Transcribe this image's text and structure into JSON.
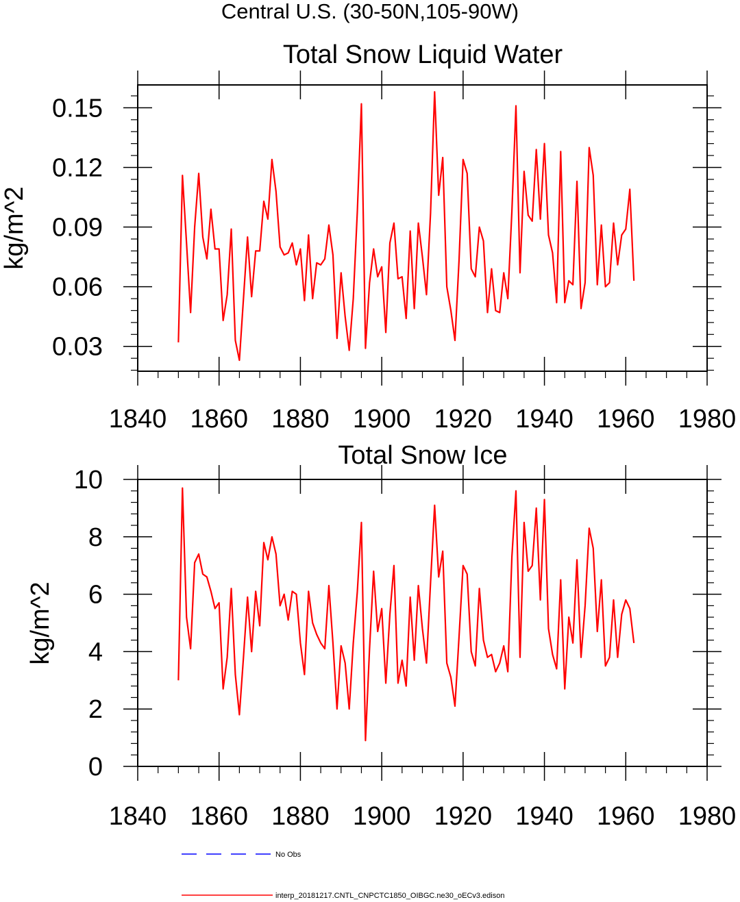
{
  "suptitle": "Central U.S. (30-50N,105-90W)",
  "colors": {
    "model": "#ff0000",
    "obs": "#0000ff",
    "axis": "#000000"
  },
  "legend": {
    "position": "bottom-left",
    "entries": [
      {
        "label": "No Obs",
        "color": "#0000ff",
        "style": "dashed"
      },
      {
        "label": "interp_20181217.CNTL_CNPCTC1850_OIBGC.ne30_oECv3.edison",
        "color": "#ff0000",
        "style": "solid"
      }
    ]
  },
  "chart_data": [
    {
      "type": "line",
      "title": "Total Snow Liquid Water",
      "xlabel": "",
      "ylabel": "kg/m^2",
      "xlim": [
        1840,
        1980
      ],
      "ylim": [
        0.0175,
        0.1615
      ],
      "x_ticks": [
        1840,
        1860,
        1880,
        1900,
        1920,
        1940,
        1960,
        1980
      ],
      "x_tick_labels": [
        "1840",
        "1860",
        "1880",
        "1900",
        "1920",
        "1940",
        "1960",
        "1980"
      ],
      "y_ticks": [
        0.03,
        0.06,
        0.09,
        0.12,
        0.15
      ],
      "y_tick_labels": [
        "0.03",
        "0.06",
        "0.09",
        "0.12",
        "0.15"
      ],
      "series": [
        {
          "name": "interp_20181217.CNTL_CNPCTC1850_OIBGC.ne30_oECv3.edison",
          "x_start": 1850,
          "x_step": 1,
          "values": [
            0.032,
            0.116,
            0.082,
            0.047,
            0.09,
            0.117,
            0.085,
            0.074,
            0.099,
            0.079,
            0.079,
            0.043,
            0.056,
            0.089,
            0.033,
            0.023,
            0.054,
            0.085,
            0.055,
            0.078,
            0.078,
            0.103,
            0.094,
            0.124,
            0.108,
            0.08,
            0.076,
            0.077,
            0.082,
            0.071,
            0.079,
            0.053,
            0.086,
            0.054,
            0.072,
            0.071,
            0.074,
            0.091,
            0.076,
            0.034,
            0.067,
            0.045,
            0.028,
            0.054,
            0.098,
            0.152,
            0.029,
            0.062,
            0.079,
            0.065,
            0.07,
            0.037,
            0.082,
            0.092,
            0.064,
            0.065,
            0.044,
            0.088,
            0.049,
            0.092,
            0.075,
            0.056,
            0.097,
            0.158,
            0.106,
            0.125,
            0.06,
            0.048,
            0.033,
            0.073,
            0.124,
            0.117,
            0.069,
            0.065,
            0.09,
            0.083,
            0.047,
            0.069,
            0.048,
            0.047,
            0.067,
            0.054,
            0.098,
            0.151,
            0.067,
            0.118,
            0.096,
            0.093,
            0.129,
            0.094,
            0.132,
            0.086,
            0.077,
            0.052,
            0.128,
            0.052,
            0.063,
            0.061,
            0.113,
            0.049,
            0.062,
            0.13,
            0.116,
            0.061,
            0.091,
            0.06,
            0.062,
            0.092,
            0.071,
            0.086,
            0.089,
            0.109,
            0.063
          ]
        }
      ]
    },
    {
      "type": "line",
      "title": "Total Snow Ice",
      "xlabel": "",
      "ylabel": "kg/m^2",
      "xlim": [
        1840,
        1980
      ],
      "ylim": [
        0,
        10
      ],
      "x_ticks": [
        1840,
        1860,
        1880,
        1900,
        1920,
        1940,
        1960,
        1980
      ],
      "x_tick_labels": [
        "1840",
        "1860",
        "1880",
        "1900",
        "1920",
        "1940",
        "1960",
        "1980"
      ],
      "y_ticks": [
        0,
        2,
        4,
        6,
        8,
        10
      ],
      "y_tick_labels": [
        "0",
        "2",
        "4",
        "6",
        "8",
        "10"
      ],
      "series": [
        {
          "name": "interp_20181217.CNTL_CNPCTC1850_OIBGC.ne30_oECv3.edison",
          "x_start": 1850,
          "x_step": 1,
          "values": [
            3.0,
            9.7,
            5.2,
            4.1,
            7.1,
            7.4,
            6.7,
            6.6,
            6.1,
            5.5,
            5.7,
            2.7,
            3.8,
            6.2,
            3.2,
            1.8,
            3.8,
            5.9,
            4.0,
            6.1,
            4.9,
            7.8,
            7.2,
            8.0,
            7.4,
            5.6,
            6.0,
            5.1,
            6.1,
            6.0,
            4.3,
            3.2,
            6.1,
            5.0,
            4.6,
            4.3,
            4.1,
            6.3,
            4.3,
            2.0,
            4.2,
            3.6,
            2.0,
            4.3,
            6.1,
            8.5,
            0.9,
            4.1,
            6.8,
            4.7,
            5.5,
            2.9,
            5.3,
            7.0,
            2.9,
            3.7,
            2.8,
            5.9,
            3.7,
            6.3,
            4.8,
            3.6,
            6.4,
            9.1,
            6.6,
            7.5,
            3.6,
            3.1,
            2.1,
            4.5,
            7.0,
            6.7,
            4.0,
            3.5,
            6.2,
            4.4,
            3.8,
            3.9,
            3.3,
            3.6,
            4.2,
            3.3,
            7.3,
            9.6,
            3.8,
            8.5,
            6.8,
            7.0,
            9.0,
            5.8,
            9.3,
            4.8,
            3.9,
            3.4,
            6.5,
            2.7,
            5.2,
            4.3,
            7.2,
            3.8,
            5.6,
            8.3,
            7.6,
            4.7,
            6.5,
            3.5,
            3.8,
            5.8,
            3.8,
            5.3,
            5.8,
            5.5,
            4.3
          ]
        }
      ]
    }
  ]
}
